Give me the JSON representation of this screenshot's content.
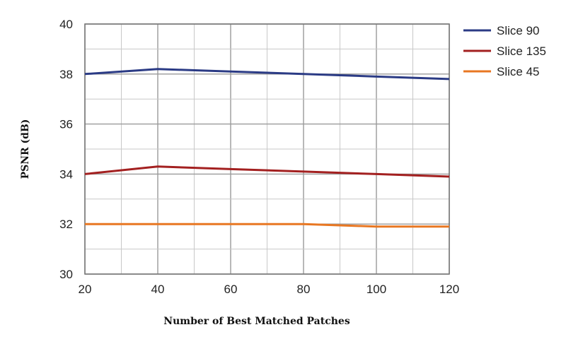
{
  "chart_data": {
    "type": "line",
    "title": "",
    "xlabel": "Number of Best Matched Patches",
    "ylabel": "PSNR (dB)",
    "x": [
      20,
      40,
      60,
      80,
      100,
      120
    ],
    "xticks": [
      20,
      40,
      60,
      80,
      100,
      120
    ],
    "xlim": [
      20,
      120
    ],
    "yticks": [
      30,
      32,
      34,
      36,
      38,
      40
    ],
    "ylim": [
      30,
      40
    ],
    "grid": true,
    "legend_position": "right",
    "series": [
      {
        "name": "Slice 90",
        "color": "#2b3b85",
        "values": [
          38.0,
          38.2,
          38.1,
          38.0,
          37.9,
          37.8
        ]
      },
      {
        "name": "Slice 135",
        "color": "#a32020",
        "values": [
          34.0,
          34.3,
          34.2,
          34.1,
          34.0,
          33.9
        ]
      },
      {
        "name": "Slice 45",
        "color": "#e87722",
        "values": [
          32.0,
          32.0,
          32.0,
          32.0,
          31.9,
          31.9
        ]
      }
    ]
  }
}
